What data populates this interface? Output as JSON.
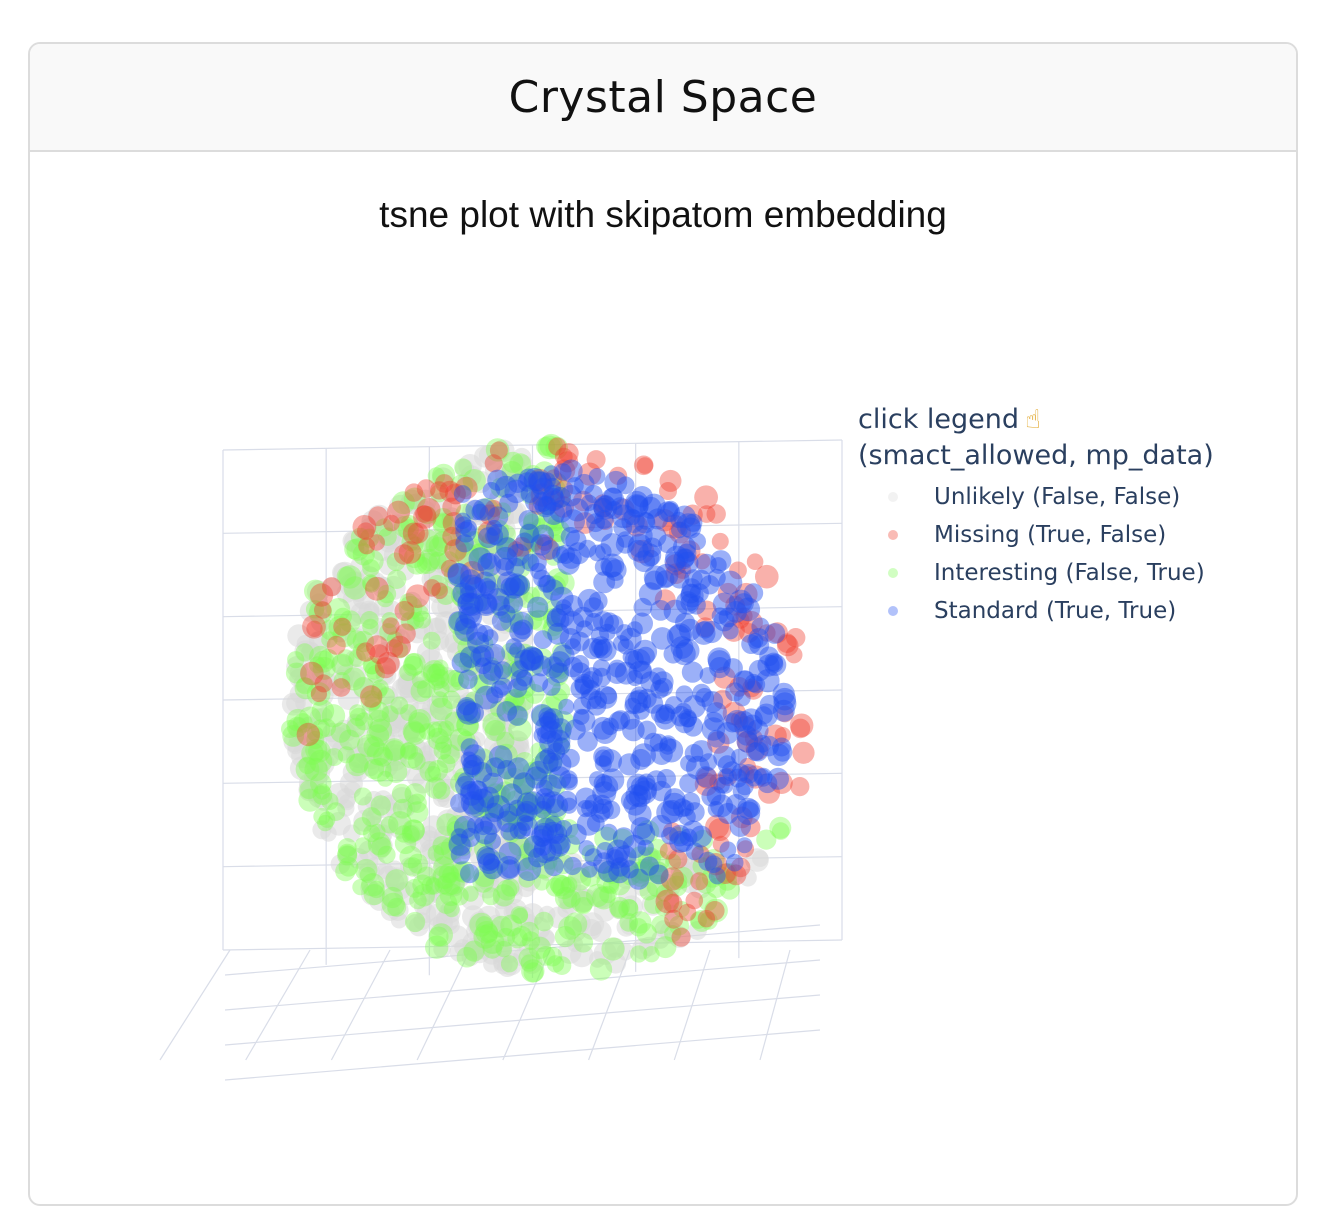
{
  "card": {
    "title": "Crystal Space"
  },
  "chart_data": {
    "type": "scatter",
    "projection": "3d",
    "title": "tsne plot with skipatom embedding",
    "grid": true,
    "legend": {
      "title_line1": "click legend",
      "title_icon": "pointing-hand-icon",
      "title_line2": "(smact_allowed, mp_data)",
      "placement": "right"
    },
    "series": [
      {
        "name": "Unlikely (False, False)",
        "color": "#d9d9d9",
        "region": "left-back",
        "approx_points": 2600
      },
      {
        "name": "Missing (True, False)",
        "color": "#ef3b2c",
        "region": "outer-shell",
        "approx_points": 700
      },
      {
        "name": "Interesting (False, True)",
        "color": "#7cfc50",
        "region": "left-lower",
        "approx_points": 2400
      },
      {
        "name": "Standard (True, True)",
        "color": "#2150f0",
        "region": "center-right",
        "approx_points": 2600
      }
    ]
  }
}
